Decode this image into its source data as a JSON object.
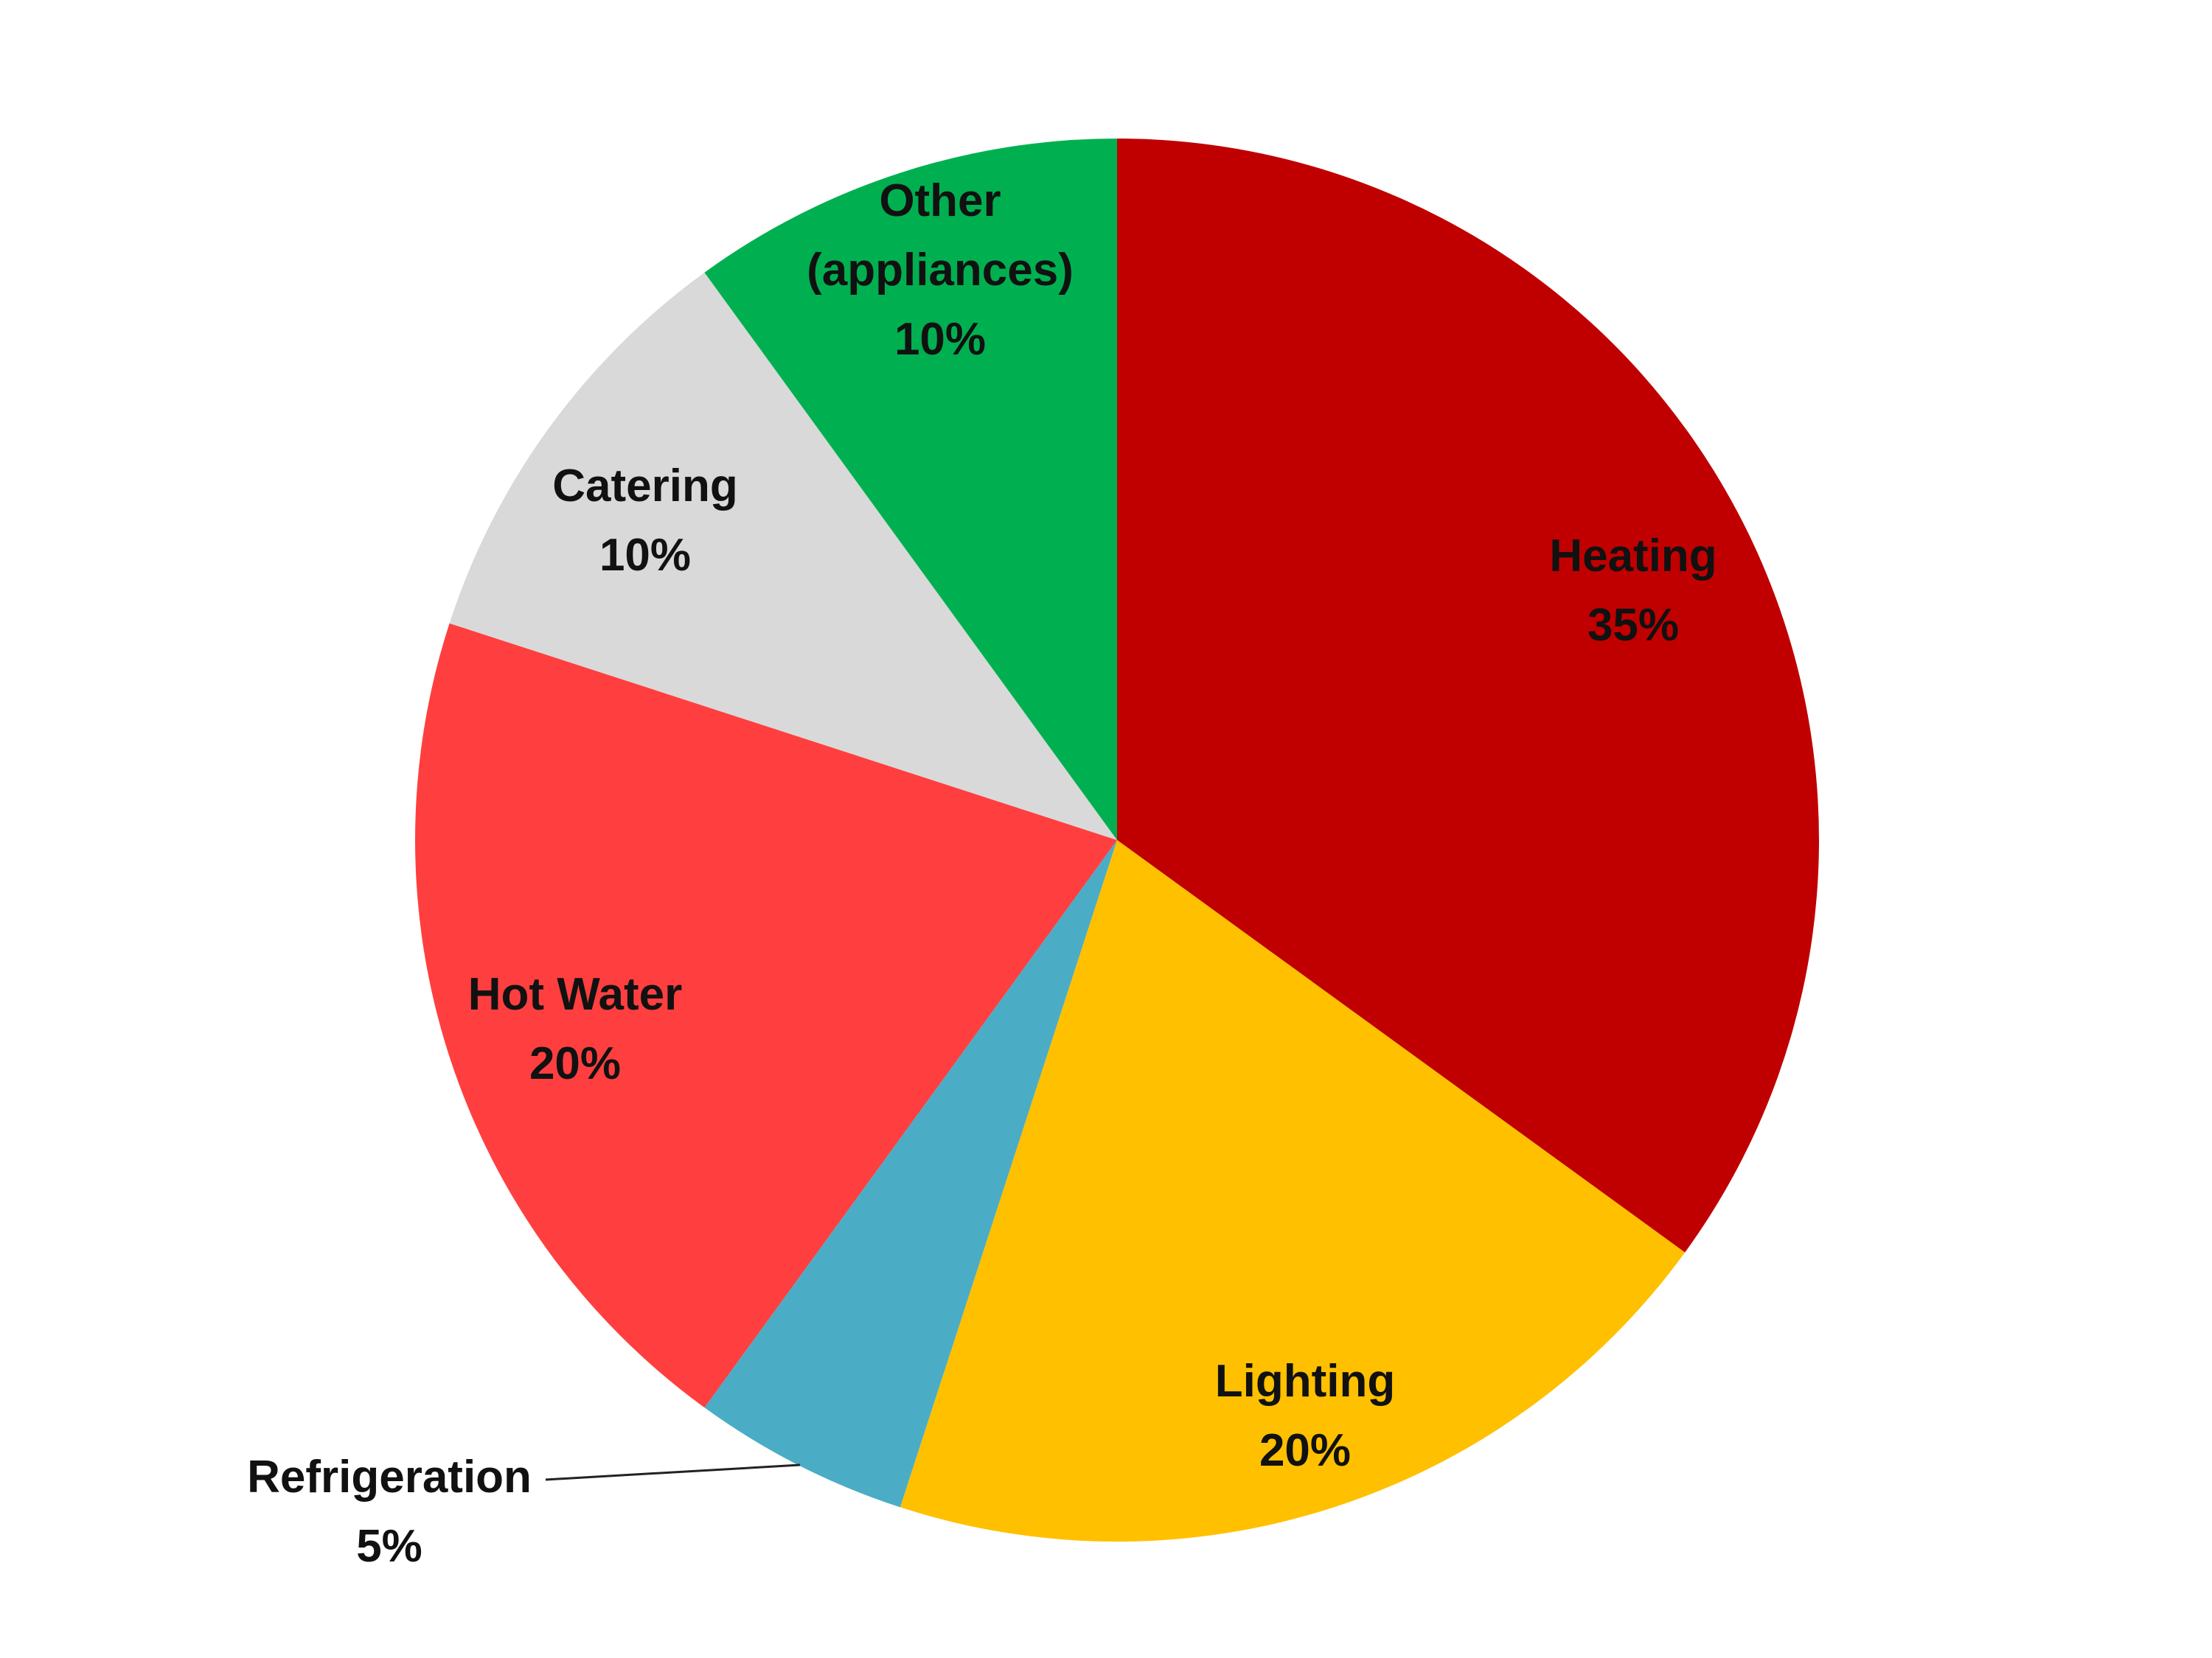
{
  "chart_data": {
    "type": "pie",
    "title": "",
    "start_angle_deg": 0,
    "direction": "clockwise",
    "slices": [
      {
        "category": "Heating",
        "value": 35,
        "label_lines": [
          "Heating",
          "35%"
        ],
        "color": "#C00000"
      },
      {
        "category": "Lighting",
        "value": 20,
        "label_lines": [
          "Lighting",
          "20%"
        ],
        "color": "#FFC000"
      },
      {
        "category": "Refrigeration",
        "value": 5,
        "label_lines": [
          "Refrigeration",
          "5%"
        ],
        "color": "#4BACC6"
      },
      {
        "category": "Hot Water",
        "value": 20,
        "label_lines": [
          "Hot Water",
          "20%"
        ],
        "color": "#FF3F3F"
      },
      {
        "category": "Catering",
        "value": 10,
        "label_lines": [
          "Catering",
          "10%"
        ],
        "color": "#D9D9D9"
      },
      {
        "category": "Other (appliances)",
        "value": 10,
        "label_lines": [
          "Other",
          "(appliances)",
          "10%"
        ],
        "color": "#00B050"
      }
    ],
    "legend": "none"
  }
}
